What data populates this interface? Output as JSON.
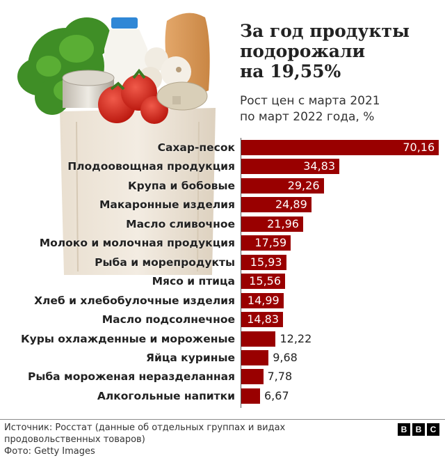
{
  "header": {
    "title_lines": [
      "За год продукты",
      "подорожали",
      "на 19,55%"
    ],
    "subtitle_lines": [
      "Рост цен с марта 2021",
      "по март 2022 года, %"
    ]
  },
  "photo": {
    "description": "grocery-bag-photo",
    "items": [
      "parsley",
      "milk-bottle",
      "baguette",
      "garlic",
      "tomatoes",
      "tin-cans",
      "paper-bag"
    ]
  },
  "colors": {
    "bar": "#990000",
    "text": "#222222",
    "background": "#ffffff"
  },
  "chart_data": {
    "type": "bar",
    "orientation": "horizontal",
    "title": "За год продукты подорожали на 19,55%",
    "subtitle": "Рост цен с марта 2021 по март 2022 года, %",
    "xlabel": "",
    "ylabel": "",
    "xlim": [
      0,
      72
    ],
    "grid": false,
    "legend": null,
    "categories": [
      "Сахар-песок",
      "Плодоовощная продукция",
      "Крупа и бобовые",
      "Макаронные изделия",
      "Масло сливочное",
      "Молоко и молочная продукция",
      "Рыба и морепродукты",
      "Мясо и птица",
      "Хлеб и хлебобулочные изделия",
      "Масло подсолнечное",
      "Куры охлажденные и мороженые",
      "Яйца куриные",
      "Рыба мороженая неразделанная",
      "Алкогольные напитки"
    ],
    "values": [
      70.16,
      34.83,
      29.26,
      24.89,
      21.96,
      17.59,
      15.93,
      15.56,
      14.99,
      14.83,
      12.22,
      9.68,
      7.78,
      6.67
    ],
    "value_labels": [
      "70,16",
      "34,83",
      "29,26",
      "24,89",
      "21,96",
      "17,59",
      "15,93",
      "15,56",
      "14,99",
      "14,83",
      "12,22",
      "9,68",
      "7,78",
      "6,67"
    ]
  },
  "footer": {
    "source_lines": [
      "Источник: Росстат (данные об отдельных группах и видах",
      "продовольственных товаров)"
    ],
    "photo_credit": "Фото: Getty Images",
    "logo_letters": [
      "B",
      "B",
      "C"
    ]
  }
}
